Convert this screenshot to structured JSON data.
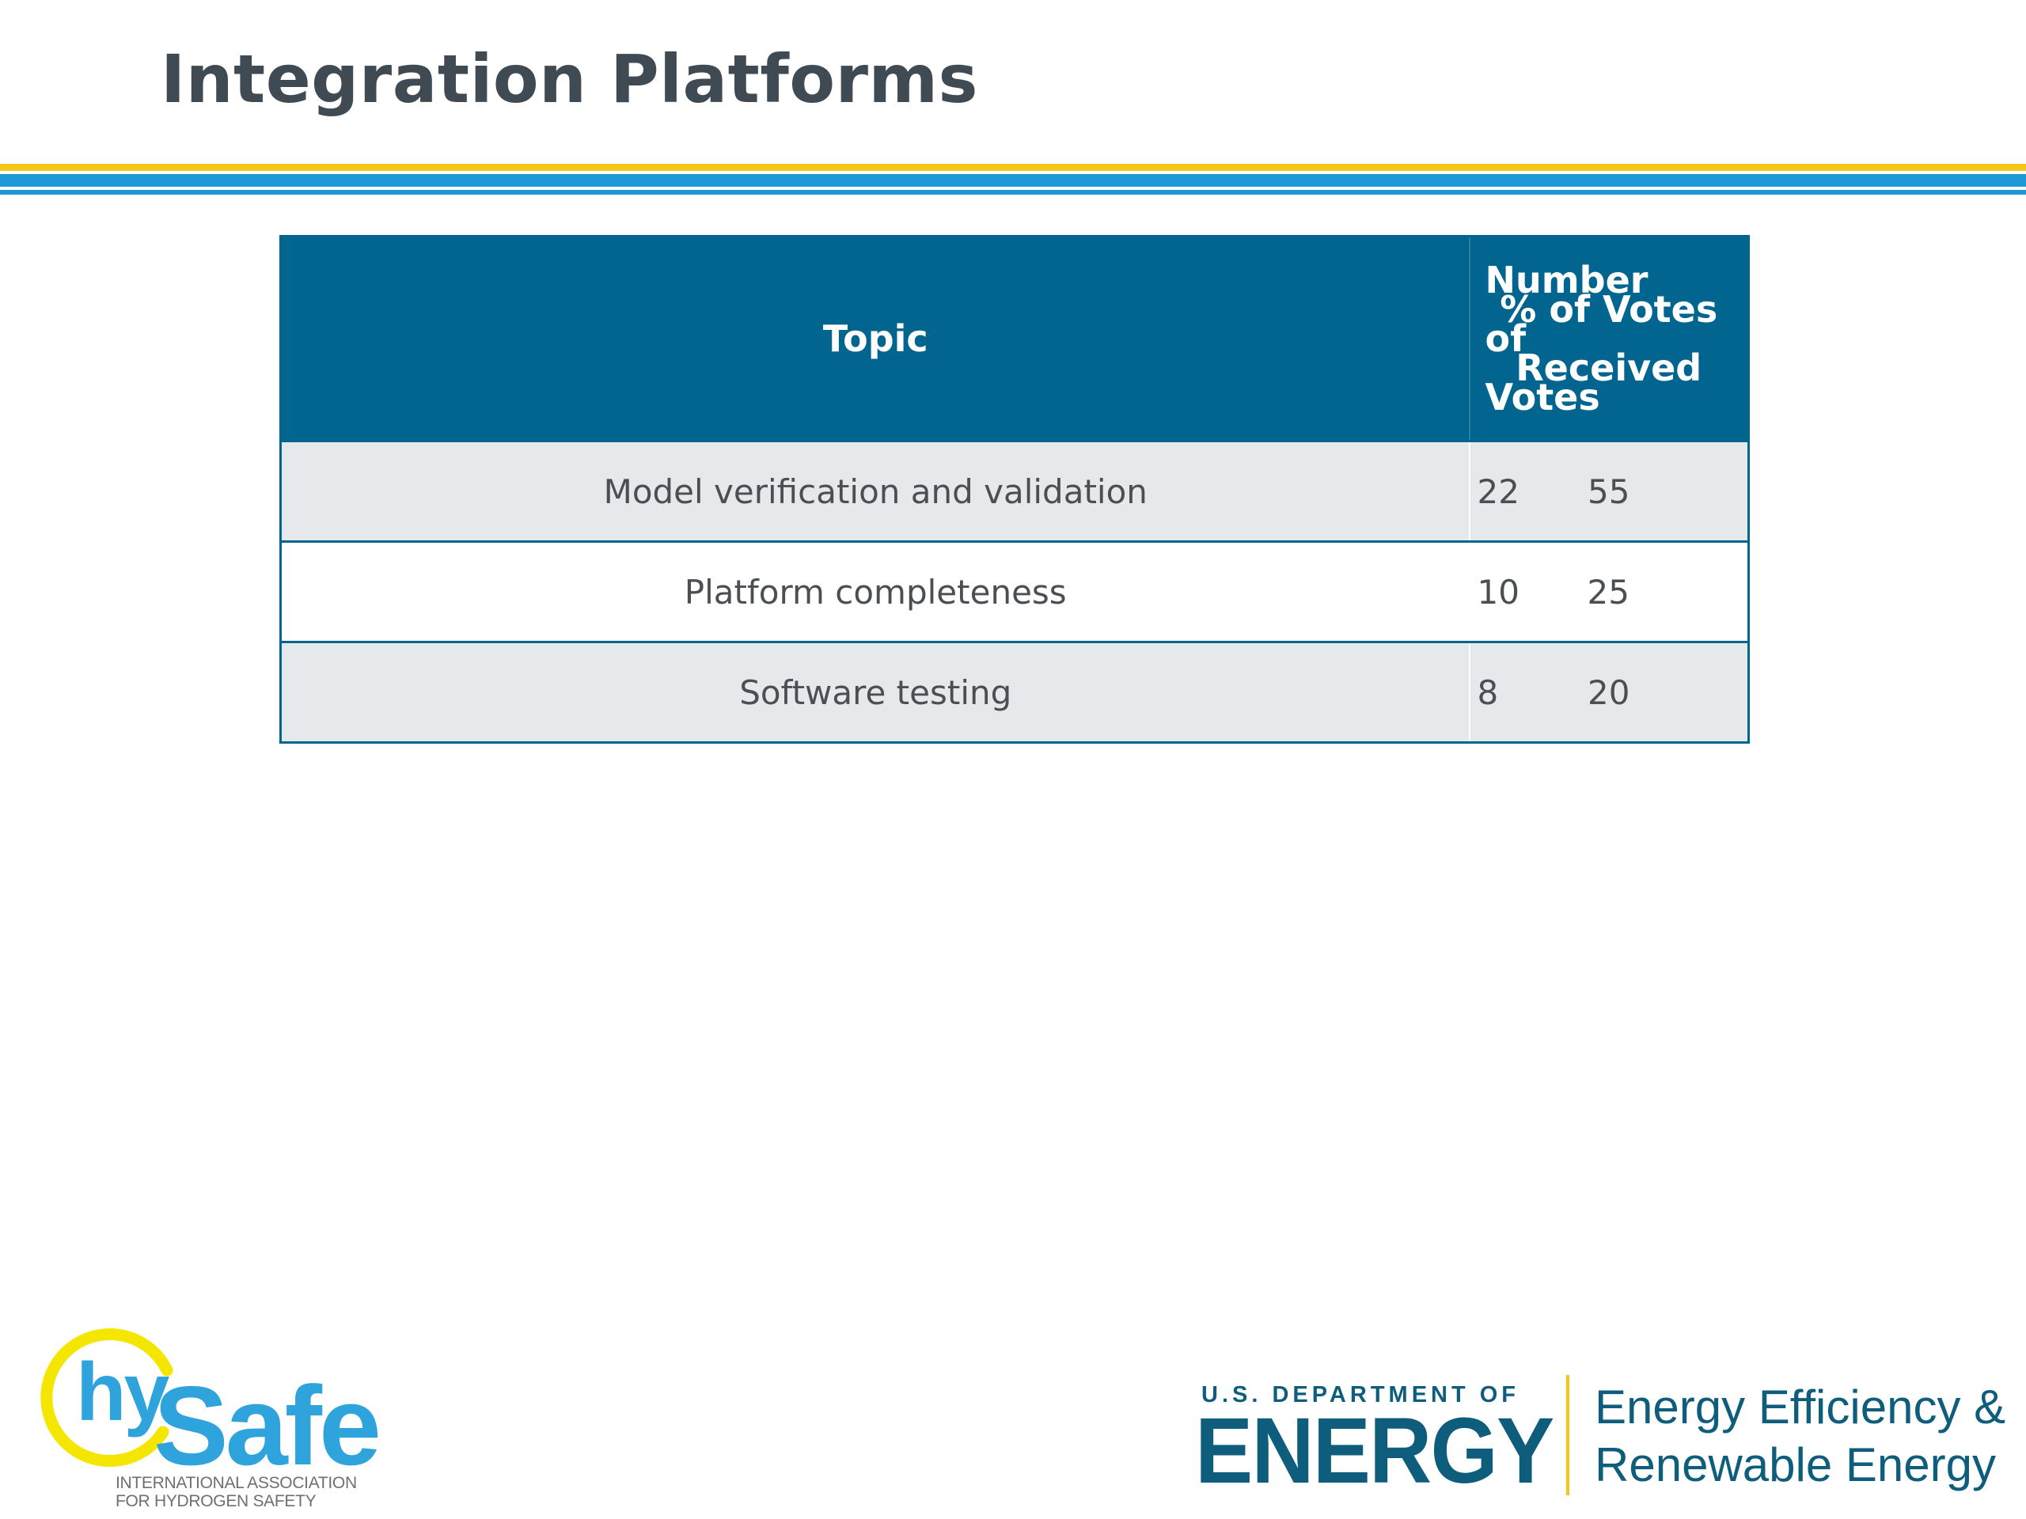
{
  "slide": {
    "title": "Integration Platforms"
  },
  "colors": {
    "title_text": "#404a53",
    "rule_yellow": "#f5c518",
    "rule_blue": "#1d98d6",
    "table_header_bg": "#02658f",
    "table_stripe": "#e6e9ec",
    "logo_blue": "#2fa4dc",
    "logo_ring_yellow": "#f5e600",
    "doe_blue": "#0e5d7c"
  },
  "table": {
    "headers": {
      "topic": "Topic",
      "votes_line1": "Number",
      "votes_line2": "of Votes",
      "pct_line1": "% of Votes",
      "pct_line2": "Received"
    },
    "rows": [
      {
        "topic": "Model verification and validation",
        "votes": "22",
        "pct": "55"
      },
      {
        "topic": "Platform completeness",
        "votes": "10",
        "pct": "25"
      },
      {
        "topic": "Software testing",
        "votes": "8",
        "pct": "20"
      }
    ]
  },
  "logos": {
    "hysafe": {
      "hy": "hy",
      "safe": "Safe",
      "tagline_line1": "INTERNATIONAL ASSOCIATION",
      "tagline_line2": "FOR HYDROGEN SAFETY"
    },
    "doe": {
      "dept": "U.S. DEPARTMENT OF",
      "energy": "ENERGY",
      "office_line1": "Energy Efficiency &",
      "office_line2": "Renewable Energy"
    }
  }
}
